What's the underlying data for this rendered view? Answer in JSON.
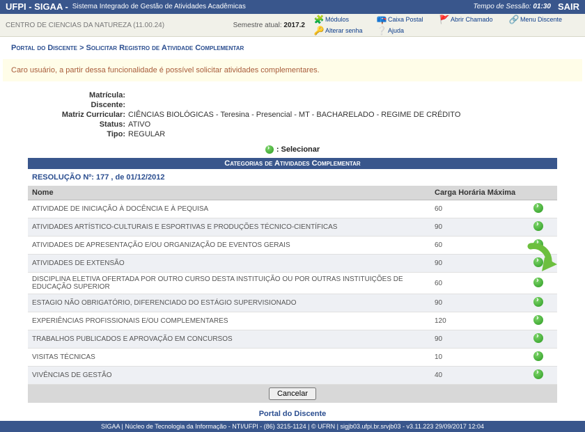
{
  "topbar": {
    "brand": "UFPI - SIGAA -",
    "sub": "Sistema Integrado de Gestão de Atividades Acadêmicas",
    "timer_label": "Tempo de Sessão:",
    "timer": "01:30",
    "sair": "SAIR"
  },
  "toolbar": {
    "center": "CENTRO DE CIENCIAS DA NATUREZA (11.00.24)",
    "semestre_label": "Semestre atual:",
    "semestre": "2017.2",
    "tools": {
      "modulos": "Módulos",
      "caixa": "Caixa Postal",
      "chamado": "Abrir Chamado",
      "menu": "Menu Discente",
      "senha": "Alterar senha",
      "ajuda": "Ajuda"
    }
  },
  "breadcrumb": "Portal do Discente > Solicitar Registro de Atividade Complementar",
  "notice": "Caro usuário, a partir dessa funcionalidade é possível solicitar atividades complementares.",
  "info": {
    "matricula_l": "Matrícula:",
    "matricula_v": "",
    "discente_l": "Discente:",
    "discente_v": "",
    "matriz_l": "Matriz Curricular:",
    "matriz_v": "CIÊNCIAS BIOLÓGICAS - Teresina - Presencial - MT - BACHARELADO - REGIME DE CRÉDITO",
    "status_l": "Status:",
    "status_v": "ATIVO",
    "tipo_l": "Tipo:",
    "tipo_v": "REGULAR"
  },
  "legend": ": Selecionar",
  "panel_title": "Categorias de Atividades Complementar",
  "resolucao": "RESOLUÇÃO Nº: 177 , de 01/12/2012",
  "headers": {
    "nome": "Nome",
    "carga": "Carga Horária Máxima"
  },
  "cats": [
    {
      "nome": "ATIVIDADE DE INICIAÇÃO À DOCÊNCIA E À PEQUISA",
      "carga": "60"
    },
    {
      "nome": "ATIVIDADES ARTÍSTICO-CULTURAIS E ESPORTIVAS E PRODUÇÕES TÉCNICO-CIENTÍFICAS",
      "carga": "90"
    },
    {
      "nome": "ATIVIDADES DE APRESENTAÇÃO E/OU ORGANIZAÇÃO DE EVENTOS GERAIS",
      "carga": "60"
    },
    {
      "nome": "ATIVIDADES DE EXTENSÃO",
      "carga": "90"
    },
    {
      "nome": "DISCIPLINA ELETIVA OFERTADA POR OUTRO CURSO DESTA INSTITUIÇÃO OU POR OUTRAS INSTITUIÇÕES DE EDUCAÇÃO SUPERIOR",
      "carga": "60"
    },
    {
      "nome": "ESTAGIO NÃO OBRIGATÓRIO, DIFERENCIADO DO ESTÁGIO SUPERVISIONADO",
      "carga": "90"
    },
    {
      "nome": "EXPERIÊNCIAS PROFISSIONAIS E/OU COMPLEMENTARES",
      "carga": "120"
    },
    {
      "nome": "TRABALHOS PUBLICADOS E APROVAÇÃO EM CONCURSOS",
      "carga": "90"
    },
    {
      "nome": "VISITAS TÉCNICAS",
      "carga": "10"
    },
    {
      "nome": "VIVÊNCIAS DE GESTÃO",
      "carga": "40"
    }
  ],
  "cancel": "Cancelar",
  "portal_link": "Portal do Discente",
  "footer": "SIGAA | Núcleo de Tecnologia da Informação - NTI/UFPI - (86) 3215-1124 | © UFRN | sigjb03.ufpi.br.srvjb03 - v3.11.223 29/09/2017 12:04",
  "colors": {
    "header": "#39568c",
    "accent": "#6cbf3e"
  }
}
